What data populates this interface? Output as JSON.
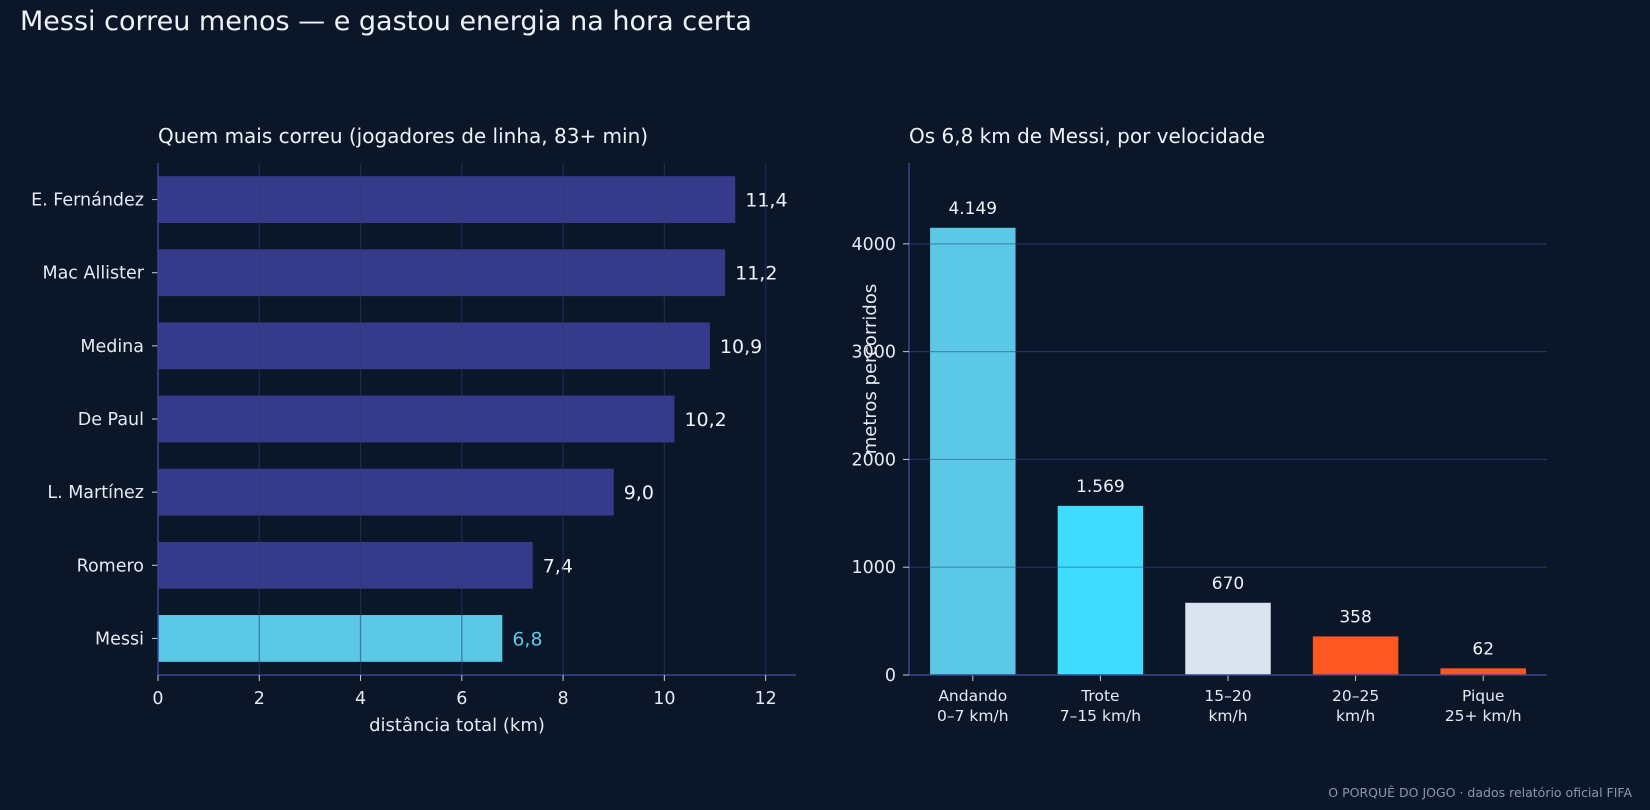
{
  "title": "Messi correu menos — e gastou energia na hora certa",
  "footer": "O PORQUÊ DO JOGO · dados relatório oficial FIFA",
  "colors": {
    "background": "#0b1628",
    "bar_default": "#363a8a",
    "highlight": "#5bc8e6",
    "walk": "#5bc8e6",
    "jog": "#3fdcff",
    "mid": "#dce3f0",
    "fast": "#ff5722",
    "grid": "#1d2a52",
    "axis": "#3b4590"
  },
  "chart_data": [
    {
      "type": "bar",
      "orientation": "horizontal",
      "title": "Quem mais correu (jogadores de linha, 83+ min)",
      "xlabel": "distância total (km)",
      "ylabel": "",
      "xlim": [
        0,
        12.6
      ],
      "xticks": [
        0,
        2,
        4,
        6,
        8,
        10,
        12
      ],
      "grid": "vertical",
      "categories": [
        "E. Fernández",
        "Mac Allister",
        "Medina",
        "De Paul",
        "L. Martínez",
        "Romero",
        "Messi"
      ],
      "values": [
        11.4,
        11.2,
        10.9,
        10.2,
        9.0,
        7.4,
        6.8
      ],
      "labels": [
        "11,4",
        "11,2",
        "10,9",
        "10,2",
        "9,0",
        "7,4",
        "6,8"
      ],
      "highlight": "Messi"
    },
    {
      "type": "bar",
      "orientation": "vertical",
      "title": "Os 6,8 km de Messi, por velocidade",
      "xlabel": "",
      "ylabel": "metros percorridos",
      "ylim": [
        0,
        4750
      ],
      "yticks": [
        0,
        1000,
        2000,
        3000,
        4000
      ],
      "grid": "horizontal",
      "categories": [
        [
          "Andando",
          "0–7 km/h"
        ],
        [
          "Trote",
          "7–15 km/h"
        ],
        [
          "15–20",
          "km/h"
        ],
        [
          "20–25",
          "km/h"
        ],
        [
          "Pique",
          "25+ km/h"
        ]
      ],
      "values": [
        4149,
        1569,
        670,
        358,
        62
      ],
      "labels": [
        "4.149",
        "1.569",
        "670",
        "358",
        "62"
      ],
      "bar_colors": [
        "walk",
        "jog",
        "mid",
        "fast",
        "fast"
      ]
    }
  ]
}
